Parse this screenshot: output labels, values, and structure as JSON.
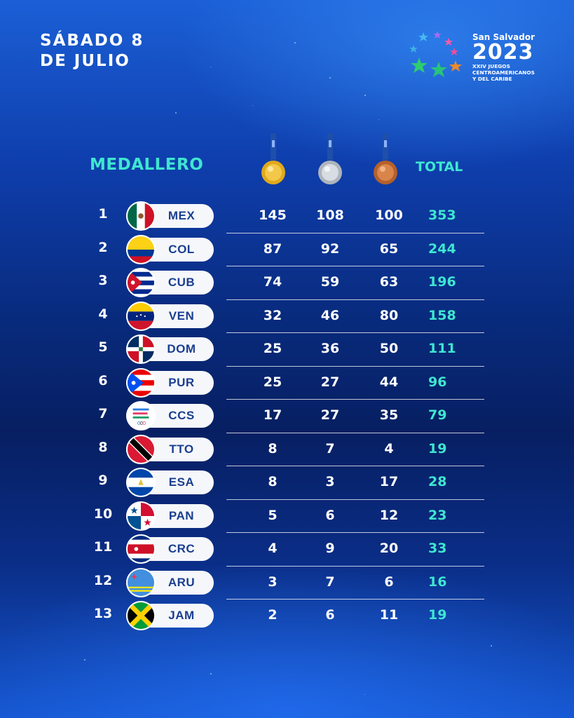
{
  "header": {
    "date_line1": "SÁBADO 8",
    "date_line2": "DE JULIO",
    "logo_city": "San Salvador",
    "logo_year": "2023",
    "logo_sub1": "XXIV JUEGOS",
    "logo_sub2": "CENTROAMERICANOS",
    "logo_sub3": "Y DEL CARIBE"
  },
  "table": {
    "title": "MEDALLERO",
    "total_header": "TOTAL",
    "rows": [
      {
        "rank": "1",
        "code": "MEX",
        "gold": "145",
        "silver": "108",
        "bronze": "100",
        "total": "353"
      },
      {
        "rank": "2",
        "code": "COL",
        "gold": "87",
        "silver": "92",
        "bronze": "65",
        "total": "244"
      },
      {
        "rank": "3",
        "code": "CUB",
        "gold": "74",
        "silver": "59",
        "bronze": "63",
        "total": "196"
      },
      {
        "rank": "4",
        "code": "VEN",
        "gold": "32",
        "silver": "46",
        "bronze": "80",
        "total": "158"
      },
      {
        "rank": "5",
        "code": "DOM",
        "gold": "25",
        "silver": "36",
        "bronze": "50",
        "total": "111"
      },
      {
        "rank": "6",
        "code": "PUR",
        "gold": "25",
        "silver": "27",
        "bronze": "44",
        "total": "96"
      },
      {
        "rank": "7",
        "code": "CCS",
        "gold": "17",
        "silver": "27",
        "bronze": "35",
        "total": "79"
      },
      {
        "rank": "8",
        "code": "TTO",
        "gold": "8",
        "silver": "7",
        "bronze": "4",
        "total": "19"
      },
      {
        "rank": "9",
        "code": "ESA",
        "gold": "8",
        "silver": "3",
        "bronze": "17",
        "total": "28"
      },
      {
        "rank": "10",
        "code": "PAN",
        "gold": "5",
        "silver": "6",
        "bronze": "12",
        "total": "23"
      },
      {
        "rank": "11",
        "code": "CRC",
        "gold": "4",
        "silver": "9",
        "bronze": "20",
        "total": "33"
      },
      {
        "rank": "12",
        "code": "ARU",
        "gold": "3",
        "silver": "7",
        "bronze": "6",
        "total": "16"
      },
      {
        "rank": "13",
        "code": "JAM",
        "gold": "2",
        "silver": "6",
        "bronze": "11",
        "total": "19"
      }
    ]
  },
  "colors": {
    "accent": "#3fe6d0",
    "code_text": "#1a3e8f",
    "pill": "#f5f7fb",
    "gold": "#e0a91c",
    "silver": "#c6cbd2",
    "bronze": "#c9723a"
  },
  "icons": {
    "gold": "gold-medal-icon",
    "silver": "silver-medal-icon",
    "bronze": "bronze-medal-icon"
  }
}
